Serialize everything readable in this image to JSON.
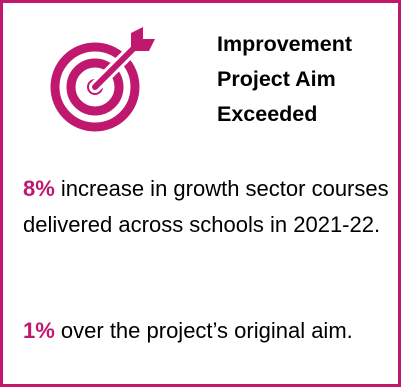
{
  "colors": {
    "accent": "#c0186f"
  },
  "icon": "target-with-arrow-icon",
  "title": {
    "line1": "Improvement",
    "line2": "Project Aim",
    "line3": "Exceeded"
  },
  "stat1": {
    "value": "8%",
    "text": " increase in growth sector courses delivered across schools in 2021-22."
  },
  "stat2": {
    "value": "1%",
    "text": " over the project’s original aim."
  }
}
